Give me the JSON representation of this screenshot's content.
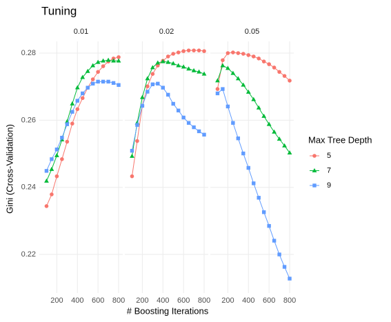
{
  "title": "Tuning",
  "x_label": "# Boosting Iterations",
  "y_label": "Gini (Cross-Validation)",
  "legend_title": "Max Tree Depth",
  "chart_data": [
    {
      "type": "line",
      "title": "0.01",
      "x": [
        100,
        150,
        200,
        250,
        300,
        350,
        400,
        450,
        500,
        550,
        600,
        650,
        700,
        750,
        800
      ],
      "xlim": [
        30,
        840
      ],
      "xticks": [
        200,
        400,
        600,
        800
      ],
      "ylim": [
        0.2085,
        0.2835
      ],
      "yticks": [
        0.22,
        0.24,
        0.26,
        0.28
      ],
      "grid": true,
      "series": [
        {
          "name": "5",
          "color": "#F8766D",
          "marker": "circle",
          "values": [
            0.2344,
            0.2379,
            0.2433,
            0.2484,
            0.2536,
            0.259,
            0.2633,
            0.2666,
            0.2697,
            0.2722,
            0.2744,
            0.2761,
            0.2775,
            0.2784,
            0.2788
          ]
        },
        {
          "name": "7",
          "color": "#00BA38",
          "marker": "triangle",
          "values": [
            0.2419,
            0.2454,
            0.2495,
            0.2542,
            0.2596,
            0.2649,
            0.2697,
            0.2728,
            0.2746,
            0.2763,
            0.2773,
            0.2777,
            0.2779,
            0.2777,
            0.2777
          ]
        },
        {
          "name": "9",
          "color": "#619CFF",
          "marker": "square",
          "values": [
            0.2449,
            0.2484,
            0.2513,
            0.2548,
            0.2588,
            0.2625,
            0.2658,
            0.268,
            0.2697,
            0.2709,
            0.2715,
            0.2715,
            0.2715,
            0.2711,
            0.2705
          ]
        }
      ]
    },
    {
      "type": "line",
      "title": "0.02",
      "x": [
        100,
        150,
        200,
        250,
        300,
        350,
        400,
        450,
        500,
        550,
        600,
        650,
        700,
        750,
        800
      ],
      "xlim": [
        30,
        840
      ],
      "xticks": [
        200,
        400,
        600,
        800
      ],
      "ylim": [
        0.2085,
        0.2835
      ],
      "grid": true,
      "series": [
        {
          "name": "5",
          "color": "#F8766D",
          "marker": "circle",
          "values": [
            0.2433,
            0.2538,
            0.2643,
            0.2701,
            0.2738,
            0.2763,
            0.2777,
            0.279,
            0.2798,
            0.2802,
            0.2806,
            0.2808,
            0.2808,
            0.2808,
            0.2806
          ]
        },
        {
          "name": "7",
          "color": "#00BA38",
          "marker": "triangle",
          "values": [
            0.2493,
            0.2592,
            0.2668,
            0.2724,
            0.2757,
            0.2771,
            0.2775,
            0.2773,
            0.2769,
            0.2763,
            0.2759,
            0.2753,
            0.2748,
            0.2744,
            0.2738
          ]
        },
        {
          "name": "9",
          "color": "#619CFF",
          "marker": "square",
          "values": [
            0.2509,
            0.2586,
            0.2643,
            0.2685,
            0.2707,
            0.2709,
            0.2697,
            0.2676,
            0.2649,
            0.2629,
            0.2608,
            0.2592,
            0.2579,
            0.2567,
            0.2557
          ]
        }
      ]
    },
    {
      "type": "line",
      "title": "0.05",
      "x": [
        100,
        150,
        200,
        250,
        300,
        350,
        400,
        450,
        500,
        550,
        600,
        650,
        700,
        750,
        800
      ],
      "xlim": [
        30,
        840
      ],
      "xticks": [
        200,
        400,
        600,
        800
      ],
      "ylim": [
        0.2085,
        0.2835
      ],
      "grid": true,
      "series": [
        {
          "name": "5",
          "color": "#F8766D",
          "marker": "circle",
          "values": [
            0.2693,
            0.2779,
            0.28,
            0.2802,
            0.28,
            0.2798,
            0.2794,
            0.279,
            0.2784,
            0.2775,
            0.2767,
            0.2757,
            0.2744,
            0.2732,
            0.2718
          ]
        },
        {
          "name": "7",
          "color": "#00BA38",
          "marker": "triangle",
          "values": [
            0.2718,
            0.2763,
            0.2755,
            0.274,
            0.2724,
            0.2705,
            0.2684,
            0.2662,
            0.2637,
            0.2612,
            0.2588,
            0.2565,
            0.2544,
            0.2524,
            0.2503
          ]
        },
        {
          "name": "9",
          "color": "#619CFF",
          "marker": "square",
          "values": [
            0.268,
            0.2693,
            0.2641,
            0.2592,
            0.2546,
            0.2501,
            0.2458,
            0.2412,
            0.2369,
            0.2326,
            0.2285,
            0.2241,
            0.22,
            0.2163,
            0.2128
          ]
        }
      ]
    }
  ]
}
